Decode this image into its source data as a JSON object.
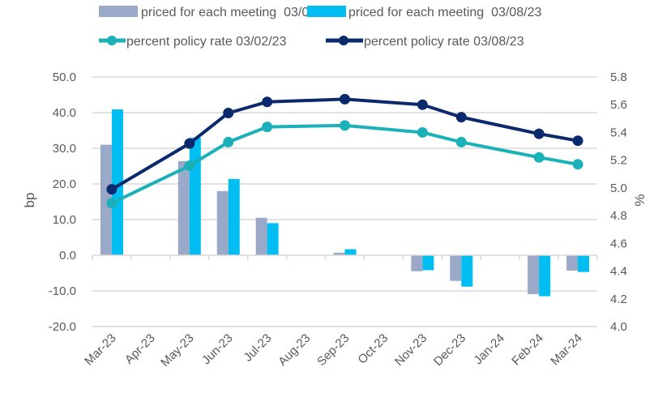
{
  "chart_data": {
    "type": "bar+line",
    "title": "",
    "categories": [
      "Mar-23",
      "Apr-23",
      "May-23",
      "Jun-23",
      "Jul-23",
      "Aug-23",
      "Sep-23",
      "Oct-23",
      "Nov-23",
      "Dec-23",
      "Jan-24",
      "Feb-24",
      "Mar-24"
    ],
    "bar_series": [
      {
        "name": "priced for each meeting  03/02/23",
        "color": "#9aa9c7",
        "axis": "left",
        "values": [
          31.0,
          null,
          26.4,
          18.0,
          10.5,
          null,
          0.7,
          null,
          -4.5,
          -7.2,
          null,
          -10.9,
          -4.3
        ]
      },
      {
        "name": "priced for each meeting  03/08/23",
        "color": "#00bdf2",
        "axis": "left",
        "values": [
          40.9,
          null,
          33.0,
          21.4,
          9.0,
          null,
          1.7,
          null,
          -4.2,
          -8.8,
          null,
          -11.5,
          -4.7
        ]
      }
    ],
    "line_series": [
      {
        "name": "percent policy rate 03/02/23",
        "color": "#1bb1b8",
        "axis": "right",
        "values": [
          4.89,
          null,
          5.16,
          5.33,
          5.44,
          null,
          5.45,
          null,
          5.4,
          5.33,
          null,
          5.22,
          5.17
        ]
      },
      {
        "name": "percent policy rate 03/08/23",
        "color": "#0b2a6e",
        "axis": "right",
        "values": [
          4.99,
          null,
          5.32,
          5.54,
          5.62,
          null,
          5.64,
          null,
          5.6,
          5.51,
          null,
          5.39,
          5.34
        ]
      }
    ],
    "ylabel_left": "bp",
    "ylabel_right": "%",
    "ylim_left": [
      -20,
      50
    ],
    "yticks_left": [
      "50.0",
      "40.0",
      "30.0",
      "20.0",
      "10.0",
      "0.0",
      "-10.0",
      "-20.0"
    ],
    "ylim_right": [
      4.0,
      5.8
    ],
    "yticks_right": [
      "5.8",
      "5.6",
      "5.4",
      "5.2",
      "5.0",
      "4.8",
      "4.6",
      "4.4",
      "4.2",
      "4.0"
    ],
    "grid": true,
    "legend_position": "top"
  }
}
